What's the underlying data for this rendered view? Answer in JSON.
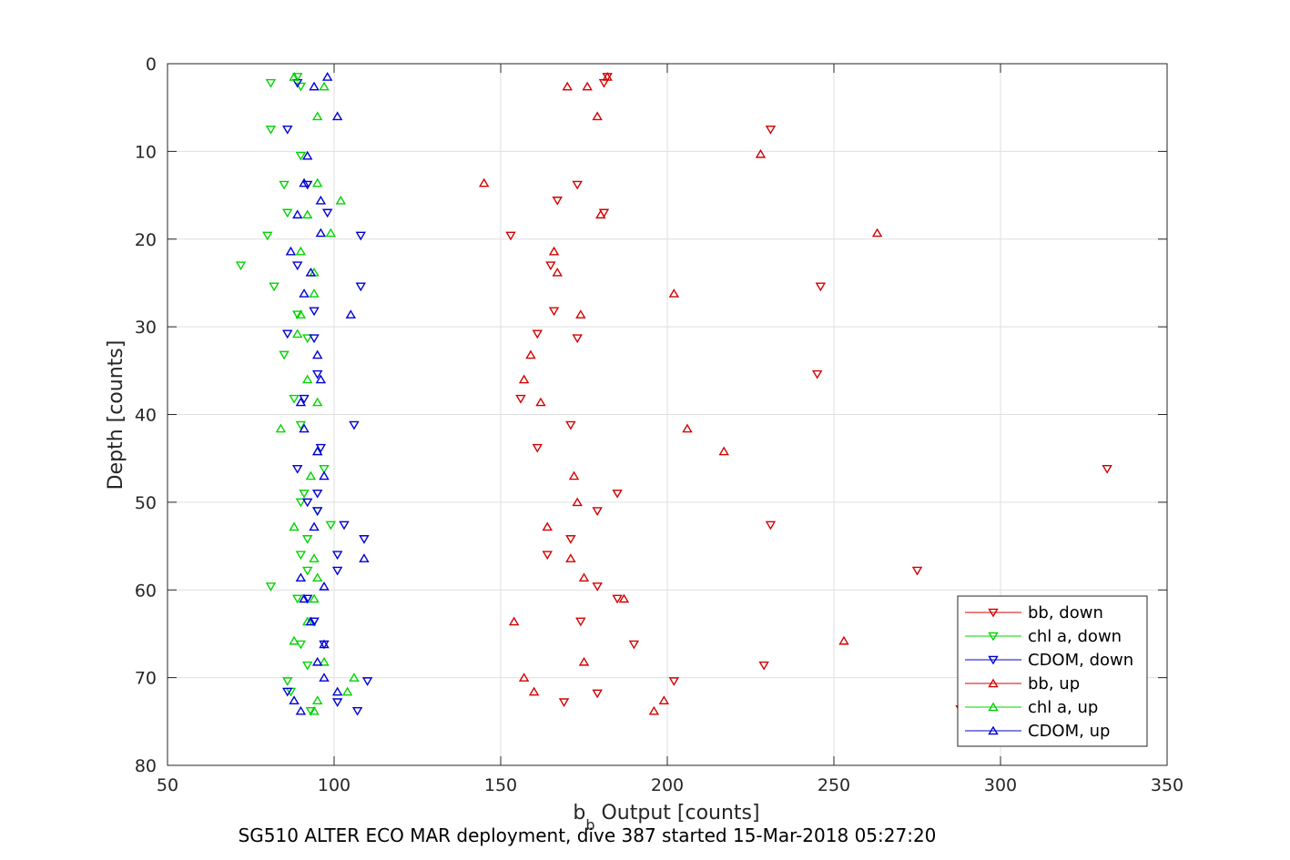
{
  "chart_data": {
    "type": "scatter",
    "xlabel_main": "b",
    "xlabel_sub": "b",
    "xlabel_rest": " Output [counts]",
    "ylabel": "Depth [counts]",
    "caption": "SG510 ALTER ECO MAR deployment, dive 387 started 15-Mar-2018 05:27:20",
    "xlim": [
      50,
      350
    ],
    "ylim": [
      0,
      80
    ],
    "y_reversed": true,
    "grid": true,
    "legend_position": "bottom-right",
    "x_ticks": [
      "50",
      "100",
      "150",
      "200",
      "250",
      "300",
      "350"
    ],
    "y_ticks": [
      "0",
      "10",
      "20",
      "30",
      "40",
      "50",
      "60",
      "70",
      "80"
    ],
    "series": [
      {
        "name": "bb, down",
        "marker": "triangle-down",
        "color": "#d40000",
        "points": [
          [
            182,
            1.5
          ],
          [
            181,
            2.2
          ],
          [
            231,
            7.5
          ],
          [
            173,
            13.8
          ],
          [
            167,
            15.6
          ],
          [
            181,
            17
          ],
          [
            153,
            19.6
          ],
          [
            165,
            23
          ],
          [
            246,
            25.4
          ],
          [
            166,
            28.2
          ],
          [
            161,
            30.8
          ],
          [
            173,
            31.3
          ],
          [
            245,
            35.4
          ],
          [
            156,
            38.2
          ],
          [
            171,
            41.2
          ],
          [
            161,
            43.8
          ],
          [
            332,
            46.2
          ],
          [
            185,
            49
          ],
          [
            179,
            51
          ],
          [
            231,
            52.6
          ],
          [
            171,
            54.2
          ],
          [
            164,
            56
          ],
          [
            275,
            57.8
          ],
          [
            179,
            59.6
          ],
          [
            185,
            61
          ],
          [
            174,
            63.6
          ],
          [
            190,
            66.2
          ],
          [
            229,
            68.6
          ],
          [
            202,
            70.4
          ],
          [
            179,
            71.8
          ],
          [
            169,
            72.8
          ],
          [
            288,
            73.6
          ]
        ]
      },
      {
        "name": "chl a, down",
        "marker": "triangle-down",
        "color": "#00d400",
        "points": [
          [
            89,
            1.5
          ],
          [
            81,
            2.2
          ],
          [
            90,
            2.6
          ],
          [
            81,
            7.5
          ],
          [
            90,
            10.5
          ],
          [
            85,
            13.8
          ],
          [
            86,
            17
          ],
          [
            80,
            19.6
          ],
          [
            72,
            23
          ],
          [
            82,
            25.4
          ],
          [
            89,
            28.6
          ],
          [
            92,
            31.3
          ],
          [
            85,
            33.2
          ],
          [
            88,
            38.2
          ],
          [
            90,
            41.2
          ],
          [
            97,
            46.2
          ],
          [
            91,
            49
          ],
          [
            90,
            50
          ],
          [
            95,
            51
          ],
          [
            99,
            52.6
          ],
          [
            92,
            54.2
          ],
          [
            90,
            56
          ],
          [
            92,
            57.8
          ],
          [
            81,
            59.6
          ],
          [
            89,
            61
          ],
          [
            94,
            63.6
          ],
          [
            90,
            66.2
          ],
          [
            92,
            68.6
          ],
          [
            86,
            70.4
          ],
          [
            87,
            71.6
          ],
          [
            93,
            73.8
          ]
        ]
      },
      {
        "name": "CDOM, down",
        "marker": "triangle-down",
        "color": "#0000d4",
        "points": [
          [
            89,
            2.2
          ],
          [
            86,
            7.5
          ],
          [
            92,
            13.8
          ],
          [
            98,
            17
          ],
          [
            108,
            19.6
          ],
          [
            89,
            23
          ],
          [
            108,
            25.4
          ],
          [
            94,
            28.2
          ],
          [
            86,
            30.8
          ],
          [
            94,
            31.3
          ],
          [
            95,
            35.4
          ],
          [
            91,
            38.2
          ],
          [
            106,
            41.2
          ],
          [
            96,
            43.8
          ],
          [
            89,
            46.2
          ],
          [
            95,
            49
          ],
          [
            92,
            50
          ],
          [
            95,
            51
          ],
          [
            103,
            52.6
          ],
          [
            109,
            54.2
          ],
          [
            101,
            56
          ],
          [
            101,
            57.8
          ],
          [
            92,
            61
          ],
          [
            94,
            63.6
          ],
          [
            97,
            66.2
          ],
          [
            110,
            70.4
          ],
          [
            86,
            71.6
          ],
          [
            101,
            72.8
          ],
          [
            107,
            73.8
          ]
        ]
      },
      {
        "name": "bb, up",
        "marker": "triangle-up",
        "color": "#d40000",
        "points": [
          [
            182,
            1.5
          ],
          [
            170,
            2.6
          ],
          [
            176,
            2.6
          ],
          [
            179,
            6
          ],
          [
            228,
            10.3
          ],
          [
            145,
            13.6
          ],
          [
            180,
            17.2
          ],
          [
            263,
            19.3
          ],
          [
            166,
            21.4
          ],
          [
            167,
            23.8
          ],
          [
            202,
            26.2
          ],
          [
            174,
            28.6
          ],
          [
            159,
            33.2
          ],
          [
            157,
            36
          ],
          [
            162,
            38.6
          ],
          [
            206,
            41.6
          ],
          [
            217,
            44.2
          ],
          [
            172,
            47
          ],
          [
            173,
            50
          ],
          [
            164,
            52.8
          ],
          [
            171,
            56.4
          ],
          [
            175,
            58.6
          ],
          [
            187,
            61
          ],
          [
            154,
            63.6
          ],
          [
            253,
            65.8
          ],
          [
            175,
            68.2
          ],
          [
            157,
            70
          ],
          [
            160,
            71.6
          ],
          [
            199,
            72.6
          ],
          [
            196,
            73.8
          ]
        ]
      },
      {
        "name": "chl a, up",
        "marker": "triangle-up",
        "color": "#00d400",
        "points": [
          [
            88,
            1.5
          ],
          [
            97,
            2.6
          ],
          [
            95,
            6
          ],
          [
            95,
            13.6
          ],
          [
            102,
            15.6
          ],
          [
            92,
            17.2
          ],
          [
            99,
            19.3
          ],
          [
            90,
            21.4
          ],
          [
            94,
            23.8
          ],
          [
            94,
            26.2
          ],
          [
            90,
            28.6
          ],
          [
            89,
            30.8
          ],
          [
            92,
            36
          ],
          [
            95,
            38.6
          ],
          [
            84,
            41.6
          ],
          [
            95,
            44.2
          ],
          [
            93,
            47
          ],
          [
            88,
            52.8
          ],
          [
            94,
            56.4
          ],
          [
            95,
            58.6
          ],
          [
            94,
            61
          ],
          [
            92,
            63.6
          ],
          [
            88,
            65.8
          ],
          [
            97,
            68.2
          ],
          [
            106,
            70
          ],
          [
            104,
            71.6
          ],
          [
            95,
            72.6
          ],
          [
            94,
            73.8
          ]
        ]
      },
      {
        "name": "CDOM, up",
        "marker": "triangle-up",
        "color": "#0000d4",
        "points": [
          [
            98,
            1.5
          ],
          [
            94,
            2.6
          ],
          [
            101,
            6
          ],
          [
            92,
            10.5
          ],
          [
            91,
            13.6
          ],
          [
            96,
            15.6
          ],
          [
            89,
            17.2
          ],
          [
            96,
            19.3
          ],
          [
            87,
            21.4
          ],
          [
            93,
            23.8
          ],
          [
            91,
            26.2
          ],
          [
            105,
            28.6
          ],
          [
            95,
            33.2
          ],
          [
            96,
            36
          ],
          [
            90,
            38.6
          ],
          [
            91,
            41.6
          ],
          [
            95,
            44.2
          ],
          [
            97,
            47
          ],
          [
            94,
            52.8
          ],
          [
            109,
            56.4
          ],
          [
            90,
            58.6
          ],
          [
            97,
            59.6
          ],
          [
            91,
            61
          ],
          [
            93,
            63.6
          ],
          [
            97,
            66.2
          ],
          [
            95,
            68.2
          ],
          [
            97,
            70
          ],
          [
            101,
            71.6
          ],
          [
            88,
            72.6
          ],
          [
            90,
            73.8
          ]
        ]
      }
    ]
  }
}
